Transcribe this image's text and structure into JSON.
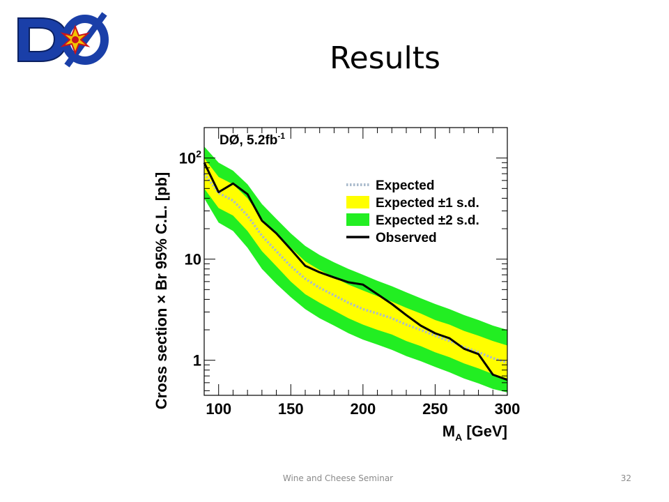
{
  "slide": {
    "title": "Results",
    "footer": "Wine and Cheese Seminar",
    "page_number": "32"
  },
  "logo": {
    "text": "DØ",
    "colors": {
      "blue": "#1a3fa8",
      "red": "#c8141e",
      "star": "#f2c400"
    }
  },
  "chart_data": {
    "type": "line",
    "annotation": {
      "main": "DØ, 5.2fb",
      "sup": "-1"
    },
    "ylabel": "Cross section × Br 95% C.L. [pb]",
    "xlabel": {
      "main": "M",
      "sub": "A",
      "rest": " [GeV]"
    },
    "xlim": [
      90,
      300
    ],
    "ylim": [
      0.45,
      200
    ],
    "yscale": "log",
    "x_ticks": [
      100,
      150,
      200,
      250,
      300
    ],
    "y_ticks": [
      {
        "value": 100,
        "base": "10",
        "sup": "2"
      },
      {
        "value": 10,
        "base": "10",
        "sup": ""
      },
      {
        "value": 1,
        "base": "1",
        "sup": ""
      }
    ],
    "legend": {
      "placement": "top-right",
      "entries": [
        {
          "key": "expected",
          "label": "Expected"
        },
        {
          "key": "band1",
          "label": "Expected ±1 s.d."
        },
        {
          "key": "band2",
          "label": "Expected ±2 s.d."
        },
        {
          "key": "observed",
          "label": "Observed"
        }
      ]
    },
    "colors": {
      "band2": "#22ee22",
      "band1": "#ffff00",
      "expected": "#aabbcc",
      "observed": "#000000"
    },
    "x": [
      90,
      100,
      110,
      120,
      130,
      140,
      150,
      160,
      170,
      180,
      190,
      200,
      210,
      220,
      230,
      240,
      250,
      260,
      270,
      280,
      290,
      300
    ],
    "series": [
      {
        "name": "Observed",
        "key": "observed",
        "values": [
          90,
          46,
          56,
          44,
          24,
          18,
          12.5,
          8.6,
          7.4,
          6.6,
          5.9,
          5.6,
          4.5,
          3.6,
          2.8,
          2.2,
          1.85,
          1.65,
          1.3,
          1.15,
          0.72,
          0.64
        ]
      },
      {
        "name": "Expected",
        "key": "expected",
        "values": [
          70,
          45,
          38,
          27,
          17,
          12,
          8.5,
          6.4,
          5.2,
          4.4,
          3.7,
          3.2,
          2.9,
          2.6,
          2.25,
          2.0,
          1.75,
          1.55,
          1.35,
          1.2,
          1.05,
          0.95
        ]
      },
      {
        "name": "Expected +1 s.d.",
        "key": "band1_hi",
        "values": [
          100,
          65,
          55,
          40,
          25,
          18,
          13,
          9.5,
          7.8,
          6.6,
          5.6,
          4.9,
          4.3,
          3.8,
          3.3,
          2.9,
          2.5,
          2.25,
          1.95,
          1.75,
          1.55,
          1.4
        ]
      },
      {
        "name": "Expected -1 s.d.",
        "key": "band1_lo",
        "values": [
          50,
          32,
          27,
          19,
          12,
          8.5,
          6.0,
          4.5,
          3.7,
          3.1,
          2.6,
          2.25,
          2.0,
          1.8,
          1.55,
          1.38,
          1.2,
          1.07,
          0.93,
          0.83,
          0.73,
          0.66
        ]
      },
      {
        "name": "Expected +2 s.d.",
        "key": "band2_hi",
        "values": [
          130,
          90,
          75,
          55,
          35,
          25,
          18,
          13.5,
          11,
          9.3,
          8,
          7,
          6.1,
          5.4,
          4.7,
          4.1,
          3.6,
          3.2,
          2.8,
          2.5,
          2.2,
          2.0
        ]
      },
      {
        "name": "Expected -2 s.d.",
        "key": "band2_lo",
        "values": [
          40,
          23,
          19,
          13,
          8,
          5.7,
          4.2,
          3.2,
          2.6,
          2.2,
          1.85,
          1.6,
          1.43,
          1.27,
          1.1,
          0.98,
          0.86,
          0.76,
          0.66,
          0.59,
          0.52,
          0.48
        ]
      }
    ]
  }
}
